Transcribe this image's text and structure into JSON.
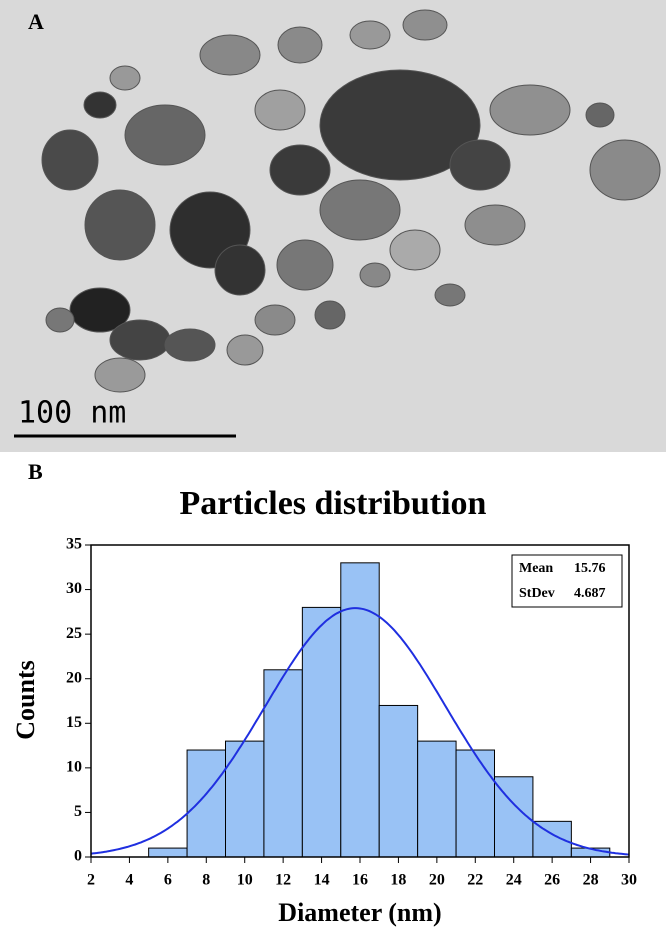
{
  "panel_labels": [
    "A",
    "B"
  ],
  "image": {
    "scale_bar": "100 nm"
  },
  "chart_data": {
    "type": "histogram",
    "title": "Particles distribution",
    "x_label": "Diameter (nm)",
    "y_label": "Counts",
    "bins": [
      5,
      7,
      9,
      11,
      13,
      15,
      17,
      19,
      21,
      23,
      25,
      27,
      29
    ],
    "values": [
      1,
      12,
      13,
      21,
      28,
      33,
      17,
      13,
      12,
      9,
      4,
      1
    ],
    "color": "#99c2f5",
    "curve_color": "#1f2fe0",
    "stats": [
      {
        "label": "Mean",
        "value": 15.76
      },
      {
        "label": "StDev",
        "value": 4.687
      }
    ],
    "xlim": [
      2,
      30
    ],
    "xticks": [
      2,
      4,
      6,
      8,
      10,
      12,
      14,
      16,
      18,
      20,
      22,
      24,
      26,
      28,
      30
    ],
    "ylim": [
      0,
      35
    ],
    "yticks": [
      0,
      5,
      10,
      15,
      20,
      25,
      30,
      35
    ]
  }
}
